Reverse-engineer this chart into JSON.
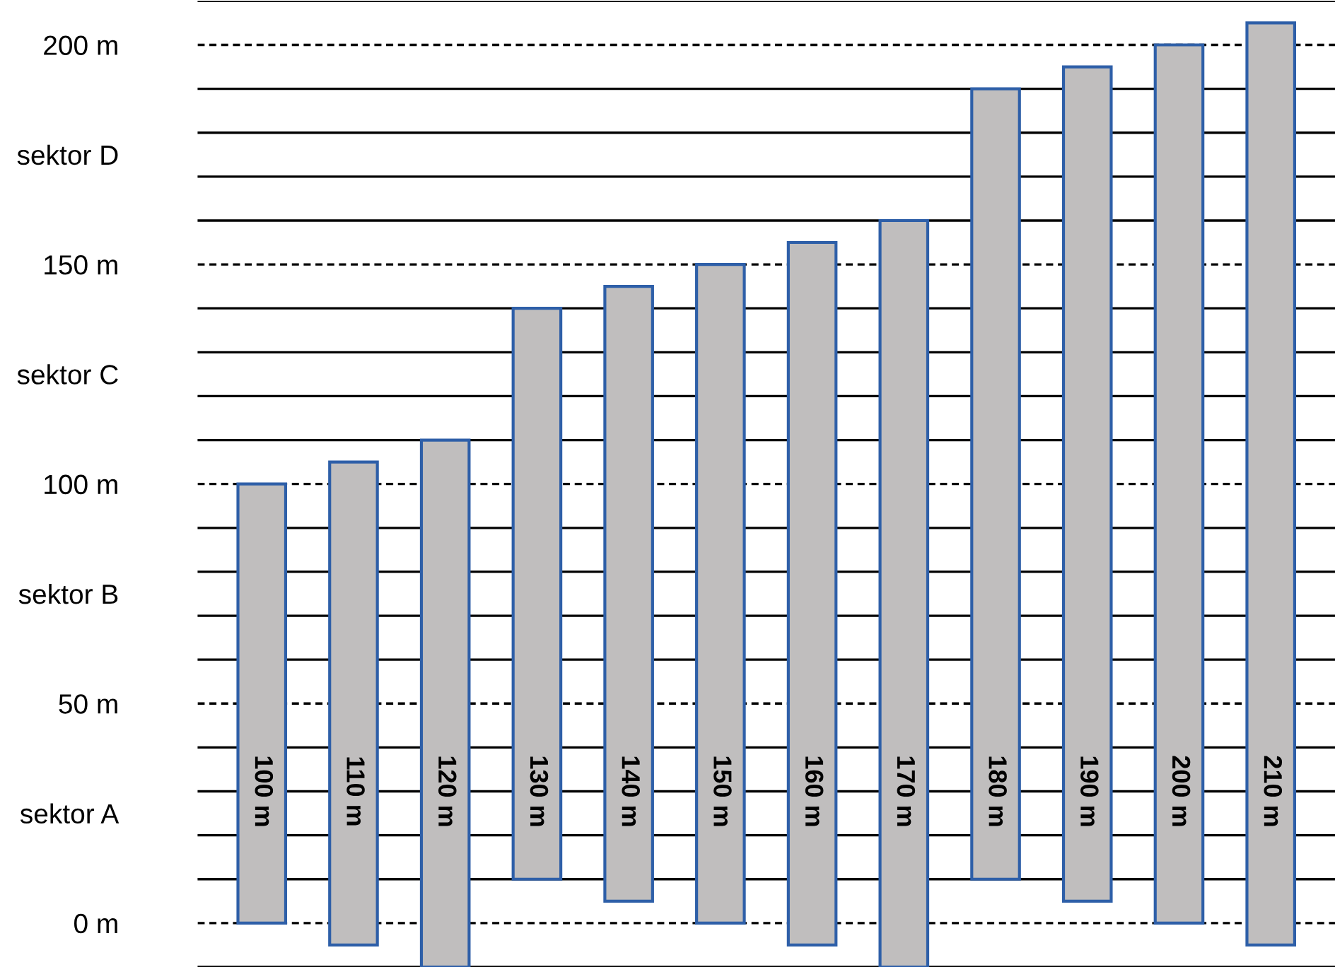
{
  "chart_data": {
    "type": "bar",
    "categories": [
      null,
      null,
      null,
      null,
      null,
      null,
      null,
      null,
      null,
      null,
      null,
      null
    ],
    "values": [
      100,
      110,
      120,
      130,
      140,
      150,
      160,
      170,
      180,
      190,
      200,
      210
    ],
    "base": [
      0,
      -5,
      -10,
      10,
      5,
      0,
      -5,
      -10,
      10,
      5,
      0,
      -5
    ],
    "value_labels": [
      "100 m",
      "110 m",
      "120 m",
      "130 m",
      "140 m",
      "150 m",
      "160 m",
      "170 m",
      "180 m",
      "190 m",
      "200 m",
      "210 m"
    ],
    "color": "#c0bebe",
    "ylim": [
      -10,
      210
    ],
    "yticks": [
      {
        "value": 0,
        "label": "0 m"
      },
      {
        "value": 25,
        "label": "sektor A"
      },
      {
        "value": 50,
        "label": "50 m"
      },
      {
        "value": 75,
        "label": "sektor B"
      },
      {
        "value": 100,
        "label": "100 m"
      },
      {
        "value": 125,
        "label": "sektor C"
      },
      {
        "value": 150,
        "label": "150 m"
      },
      {
        "value": 175,
        "label": "sektor D"
      },
      {
        "value": 200,
        "label": "200 m"
      }
    ],
    "tick_labels": "y",
    "grid": false,
    "ref_lines": [
      {
        "axis": "y",
        "value": -10,
        "label": null,
        "line_style": "solid"
      },
      {
        "axis": "y",
        "value": 0,
        "label": null,
        "line_style": "dashed"
      },
      {
        "axis": "y",
        "value": 10,
        "label": null,
        "line_style": "solid"
      },
      {
        "axis": "y",
        "value": 20,
        "label": null,
        "line_style": "solid"
      },
      {
        "axis": "y",
        "value": 30,
        "label": null,
        "line_style": "solid"
      },
      {
        "axis": "y",
        "value": 40,
        "label": null,
        "line_style": "solid"
      },
      {
        "axis": "y",
        "value": 50,
        "label": null,
        "line_style": "dashed"
      },
      {
        "axis": "y",
        "value": 60,
        "label": null,
        "line_style": "solid"
      },
      {
        "axis": "y",
        "value": 70,
        "label": null,
        "line_style": "solid"
      },
      {
        "axis": "y",
        "value": 80,
        "label": null,
        "line_style": "solid"
      },
      {
        "axis": "y",
        "value": 90,
        "label": null,
        "line_style": "solid"
      },
      {
        "axis": "y",
        "value": 100,
        "label": null,
        "line_style": "dashed"
      },
      {
        "axis": "y",
        "value": 110,
        "label": null,
        "line_style": "solid"
      },
      {
        "axis": "y",
        "value": 120,
        "label": null,
        "line_style": "solid"
      },
      {
        "axis": "y",
        "value": 130,
        "label": null,
        "line_style": "solid"
      },
      {
        "axis": "y",
        "value": 140,
        "label": null,
        "line_style": "solid"
      },
      {
        "axis": "y",
        "value": 150,
        "label": null,
        "line_style": "dashed"
      },
      {
        "axis": "y",
        "value": 160,
        "label": null,
        "line_style": "solid"
      },
      {
        "axis": "y",
        "value": 170,
        "label": null,
        "line_style": "solid"
      },
      {
        "axis": "y",
        "value": 180,
        "label": null,
        "line_style": "solid"
      },
      {
        "axis": "y",
        "value": 190,
        "label": null,
        "line_style": "solid"
      },
      {
        "axis": "y",
        "value": 200,
        "label": null,
        "line_style": "dashed"
      },
      {
        "axis": "y",
        "value": 210,
        "label": null,
        "line_style": "solid"
      }
    ]
  }
}
